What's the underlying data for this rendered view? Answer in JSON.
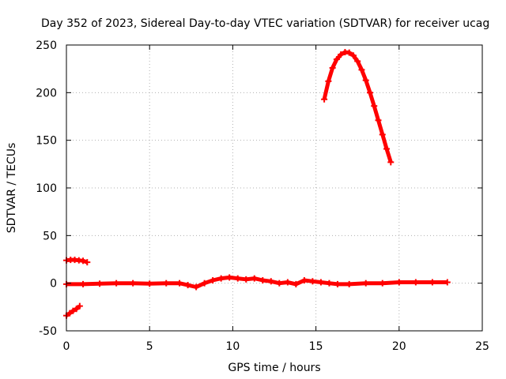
{
  "chart_data": {
    "type": "scatter",
    "title": "Day 352 of 2023, Sidereal Day-to-day VTEC variation (SDTVAR) for receiver ucag",
    "xlabel": "GPS time / hours",
    "ylabel": "SDTVAR / TECUs",
    "xlim": [
      0,
      25
    ],
    "ylim": [
      -50,
      250
    ],
    "xticks": [
      0,
      5,
      10,
      15,
      20,
      25
    ],
    "yticks": [
      -50,
      0,
      50,
      100,
      150,
      200,
      250
    ],
    "xtick_labels": [
      "0",
      "5",
      "10",
      "15",
      "20",
      "25"
    ],
    "ytick_labels": [
      "-50",
      "0",
      "50",
      "100",
      "150",
      "200",
      "250"
    ],
    "grid": true,
    "legend": "none",
    "series_color": "#ff0000",
    "series": [
      {
        "name": "baseline",
        "x": [
          0,
          1,
          2,
          3,
          4,
          5,
          6,
          6.8,
          7.3,
          7.8,
          8.3,
          8.8,
          9.3,
          9.8,
          10.3,
          10.8,
          11.3,
          11.8,
          12.3,
          12.8,
          13.3,
          13.8,
          14.3,
          14.8,
          15.3,
          15.8,
          16.3,
          17,
          18,
          19,
          20,
          21,
          22,
          22.9
        ],
        "y": [
          -1,
          -1,
          -0.5,
          0,
          0,
          -0.5,
          0,
          0,
          -2,
          -4,
          0,
          3,
          5,
          6,
          5,
          4,
          5,
          3,
          2,
          0,
          1,
          -1,
          3,
          2,
          1,
          0,
          -1,
          -1,
          0,
          0,
          1,
          1,
          1,
          1
        ]
      },
      {
        "name": "upper-left segment",
        "x": [
          0,
          0.25,
          0.5,
          0.75,
          1.0,
          1.25
        ],
        "y": [
          24,
          24.5,
          24.5,
          24,
          23.5,
          22
        ]
      },
      {
        "name": "lower-left segment",
        "x": [
          0,
          0.2,
          0.4,
          0.6,
          0.8
        ],
        "y": [
          -34,
          -31.5,
          -29,
          -27,
          -24
        ]
      },
      {
        "name": "arc",
        "x": [
          15.5,
          15.75,
          16.0,
          16.25,
          16.5,
          16.75,
          17.0,
          17.25,
          17.5,
          17.75,
          18.0,
          18.25,
          18.5,
          18.75,
          19.0,
          19.25,
          19.5
        ],
        "y": [
          193,
          212,
          226,
          235,
          240,
          242.5,
          242,
          239,
          233,
          224,
          213,
          200,
          186,
          171,
          156,
          141,
          127
        ]
      }
    ]
  }
}
